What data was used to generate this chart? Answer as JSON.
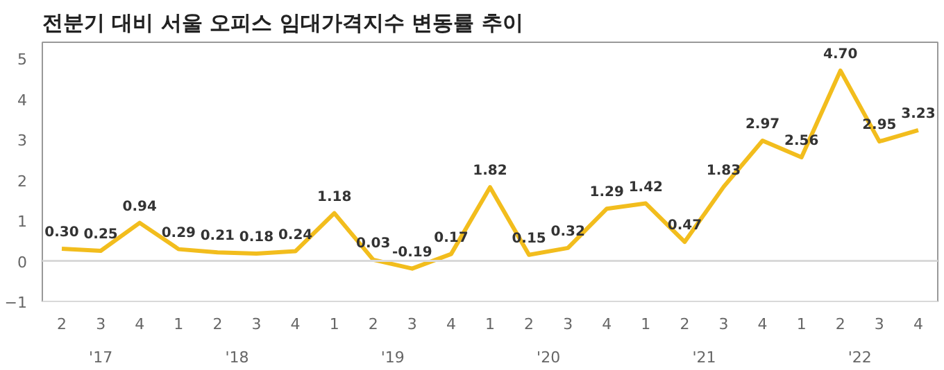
{
  "chart_data": {
    "type": "line",
    "title": "전분기 대비 서울 오피스 임대가격지수 변동률 추이",
    "categories": [
      "2",
      "3",
      "4",
      "1",
      "2",
      "3",
      "4",
      "1",
      "2",
      "3",
      "4",
      "1",
      "2",
      "3",
      "4",
      "1",
      "2",
      "3",
      "4",
      "1",
      "2",
      "3",
      "4"
    ],
    "annotations": [
      "'17",
      "'18",
      "'19",
      "'20",
      "'21",
      "'22"
    ],
    "series": [
      {
        "color": "#f2bd1d",
        "values": [
          0.3,
          0.25,
          0.94,
          0.29,
          0.21,
          0.18,
          0.24,
          1.18,
          0.03,
          -0.19,
          0.17,
          1.82,
          0.15,
          0.32,
          1.29,
          1.42,
          0.47,
          1.83,
          2.97,
          2.56,
          4.7,
          2.95,
          3.23
        ]
      }
    ],
    "ylim": [
      -1,
      5.4
    ],
    "yticks": [
      -1,
      0,
      1,
      2,
      3,
      4,
      5
    ],
    "ref_lines": [
      {
        "axis": "y",
        "value": 0,
        "color": "#d9d9d9"
      }
    ],
    "value_labels": [
      "0.30",
      "0.25",
      "0.94",
      "0.29",
      "0.21",
      "0.18",
      "0.24",
      "1.18",
      "0.03",
      "-0.19",
      "0.17",
      "1.82",
      "0.15",
      "0.32",
      "1.29",
      "1.42",
      "0.47",
      "1.83",
      "2.97",
      "2.56",
      "4.70",
      "2.95",
      "3.23"
    ],
    "grid": false,
    "marker": "none",
    "line_style": "solid"
  }
}
